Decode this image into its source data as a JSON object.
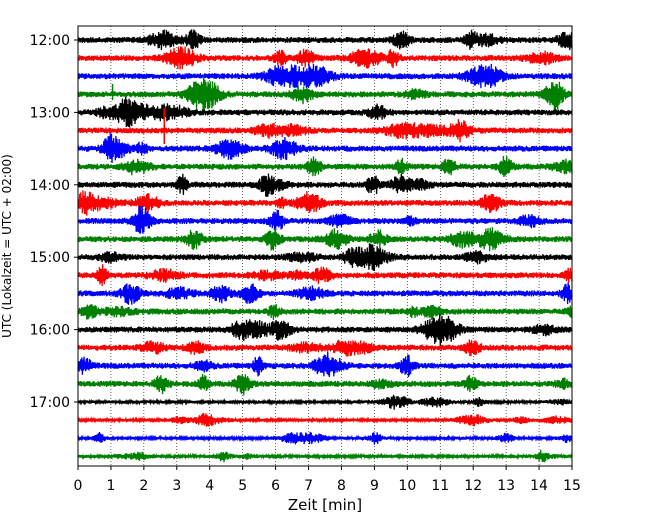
{
  "chart_data": {
    "type": "line",
    "title": "",
    "xlabel": "Zeit  [min]",
    "ylabel": "UTC (Lokalzeit = UTC + 02:00)",
    "xlim": [
      0,
      15
    ],
    "x_ticks": [
      "0",
      "1",
      "2",
      "3",
      "4",
      "5",
      "6",
      "7",
      "8",
      "9",
      "10",
      "11",
      "12",
      "13",
      "14",
      "15"
    ],
    "y_ticks": [
      "12:00",
      "13:00",
      "14:00",
      "15:00",
      "16:00",
      "17:00"
    ],
    "grid": "vertical dotted lines at each minute",
    "legend": "none",
    "trace_interval_minutes": 15,
    "trace_colors": [
      "#000000",
      "#ff0000",
      "#0000ff",
      "#008000"
    ],
    "traces": [
      {
        "start": "12:00",
        "color": "#000000"
      },
      {
        "start": "12:15",
        "color": "#ff0000"
      },
      {
        "start": "12:30",
        "color": "#0000ff"
      },
      {
        "start": "12:45",
        "color": "#008000"
      },
      {
        "start": "13:00",
        "color": "#000000"
      },
      {
        "start": "13:15",
        "color": "#ff0000"
      },
      {
        "start": "13:30",
        "color": "#0000ff"
      },
      {
        "start": "13:45",
        "color": "#008000"
      },
      {
        "start": "14:00",
        "color": "#000000"
      },
      {
        "start": "14:15",
        "color": "#ff0000"
      },
      {
        "start": "14:30",
        "color": "#0000ff"
      },
      {
        "start": "14:45",
        "color": "#008000"
      },
      {
        "start": "15:00",
        "color": "#000000"
      },
      {
        "start": "15:15",
        "color": "#ff0000"
      },
      {
        "start": "15:30",
        "color": "#0000ff"
      },
      {
        "start": "15:45",
        "color": "#008000"
      },
      {
        "start": "16:00",
        "color": "#000000"
      },
      {
        "start": "16:15",
        "color": "#ff0000"
      },
      {
        "start": "16:30",
        "color": "#0000ff"
      },
      {
        "start": "16:45",
        "color": "#008000"
      },
      {
        "start": "17:00",
        "color": "#000000"
      },
      {
        "start": "17:15",
        "color": "#ff0000"
      },
      {
        "start": "17:30",
        "color": "#0000ff"
      },
      {
        "start": "17:45",
        "color": "#008000"
      }
    ]
  }
}
